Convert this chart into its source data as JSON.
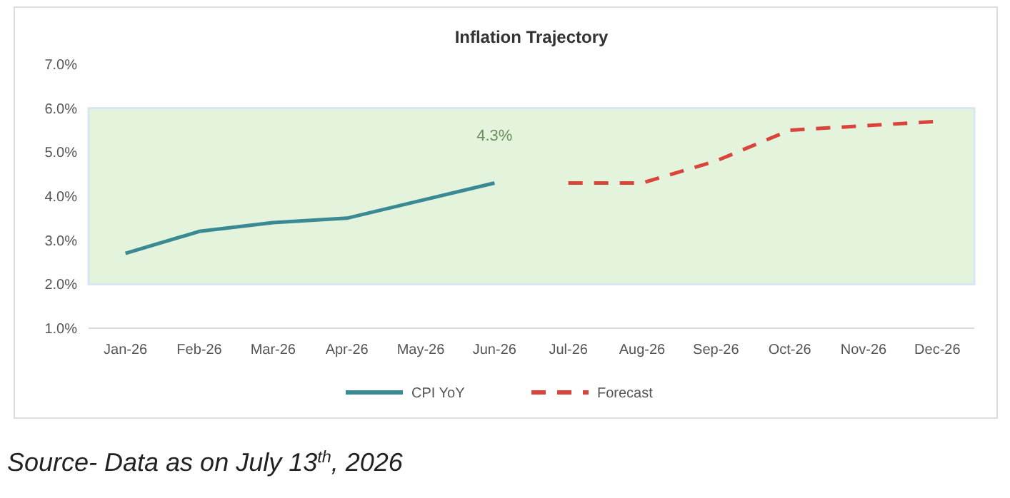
{
  "chart_data": {
    "type": "line",
    "title": "Inflation Trajectory",
    "categories": [
      "Jan-26",
      "Feb-26",
      "Mar-26",
      "Apr-26",
      "May-26",
      "Jun-26",
      "Jul-26",
      "Aug-26",
      "Sep-26",
      "Oct-26",
      "Nov-26",
      "Dec-26"
    ],
    "series": [
      {
        "name": "CPI YoY",
        "color": "#3a8a94",
        "line_style": "solid",
        "values": [
          2.7,
          3.2,
          3.4,
          3.5,
          3.9,
          4.3,
          null,
          null,
          null,
          null,
          null,
          null
        ],
        "value_labels": [
          null,
          null,
          null,
          null,
          null,
          "4.3%",
          null,
          null,
          null,
          null,
          null,
          null
        ]
      },
      {
        "name": "Forecast",
        "color": "#d9453b",
        "line_style": "dashed",
        "values": [
          null,
          null,
          null,
          null,
          null,
          null,
          4.3,
          4.3,
          4.8,
          5.5,
          5.6,
          5.7
        ]
      }
    ],
    "ylim": [
      1,
      7
    ],
    "yticks": [
      {
        "value": 1,
        "label": "1.0%"
      },
      {
        "value": 2,
        "label": "2.0%"
      },
      {
        "value": 3,
        "label": "3.0%"
      },
      {
        "value": 4,
        "label": "4.0%"
      },
      {
        "value": 5,
        "label": "5.0%"
      },
      {
        "value": 6,
        "label": "6.0%"
      },
      {
        "value": 7,
        "label": "7.0%"
      }
    ],
    "bands": [
      {
        "axis": "y",
        "from": 2,
        "to": 6,
        "color": "#e4f3dc"
      }
    ],
    "grid": false,
    "legend": "bottom",
    "annotations": [
      "Source- Data as on July 13$^{th}$, 2026"
    ]
  }
}
